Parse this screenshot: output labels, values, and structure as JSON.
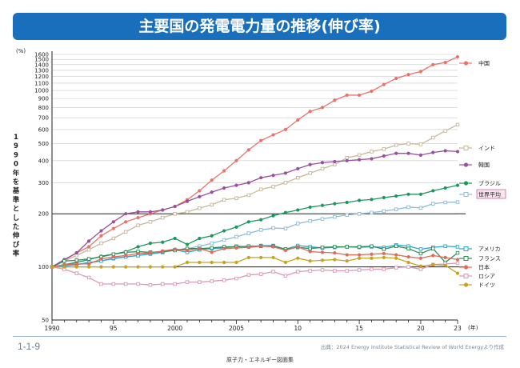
{
  "title": "主要国の発電電力量の推移(伸び率)",
  "figure_number": "1-1-9",
  "source": "出典：2024 Energy Institute Statistical Review of World Energyより作成",
  "publisher": "原子力・エネルギー図面集",
  "colors": {
    "title_bg": "#1a6fbd"
  },
  "chart_data": {
    "type": "line",
    "ylabel": "1990年を基準とした伸び率",
    "yunit": "(%)",
    "xunit": "(年)",
    "yscale": "log",
    "ylim": [
      50,
      1600
    ],
    "xlim": [
      1990,
      2023
    ],
    "y_ticks": [
      50,
      100,
      200,
      300,
      400,
      500,
      600,
      700,
      800,
      900,
      1000,
      1100,
      1200,
      1300,
      1400,
      1500,
      1600
    ],
    "x_ticks": [
      {
        "value": 1990,
        "label": "1990"
      },
      {
        "value": 1995,
        "label": "95"
      },
      {
        "value": 2000,
        "label": "2000"
      },
      {
        "value": 2005,
        "label": "2005"
      },
      {
        "value": 2010,
        "label": "10"
      },
      {
        "value": 2015,
        "label": "15"
      },
      {
        "value": 2020,
        "label": "20"
      },
      {
        "value": 2023,
        "label": "23"
      }
    ],
    "x": [
      1990,
      1991,
      1992,
      1993,
      1994,
      1995,
      1996,
      1997,
      1998,
      1999,
      2000,
      2001,
      2002,
      2003,
      2004,
      2005,
      2006,
      2007,
      2008,
      2009,
      2010,
      2011,
      2012,
      2013,
      2014,
      2015,
      2016,
      2017,
      2018,
      2019,
      2020,
      2021,
      2022,
      2023
    ],
    "series": [
      {
        "name": "中国",
        "color": "#e8736a",
        "marker": "circle",
        "values": [
          100,
          109,
          120,
          130,
          150,
          165,
          180,
          190,
          200,
          210,
          220,
          240,
          270,
          310,
          350,
          400,
          460,
          520,
          560,
          600,
          680,
          760,
          800,
          880,
          940,
          940,
          990,
          1080,
          1170,
          1230,
          1280,
          1400,
          1440,
          1550
        ]
      },
      {
        "name": "インド",
        "color": "#c8b89a",
        "marker": "square",
        "values": [
          100,
          108,
          116,
          125,
          136,
          145,
          158,
          172,
          180,
          190,
          200,
          205,
          215,
          225,
          240,
          245,
          255,
          275,
          285,
          300,
          320,
          340,
          360,
          380,
          415,
          430,
          450,
          465,
          490,
          500,
          495,
          540,
          590,
          640
        ]
      },
      {
        "name": "韓国",
        "color": "#9b4fa0",
        "marker": "circle",
        "values": [
          100,
          110,
          120,
          140,
          160,
          180,
          200,
          205,
          205,
          210,
          220,
          235,
          250,
          265,
          280,
          290,
          300,
          320,
          330,
          340,
          360,
          380,
          390,
          395,
          400,
          405,
          410,
          425,
          440,
          440,
          430,
          445,
          455,
          450
        ]
      },
      {
        "name": "ブラジル",
        "color": "#1a9a5a",
        "marker": "circle",
        "values": [
          100,
          103,
          106,
          110,
          115,
          118,
          122,
          130,
          136,
          138,
          145,
          134,
          145,
          150,
          160,
          168,
          180,
          185,
          195,
          203,
          210,
          218,
          223,
          228,
          232,
          238,
          241,
          247,
          252,
          258,
          258,
          270,
          280,
          290
        ]
      },
      {
        "name": "世界平均",
        "color": "#8bbcd8",
        "marker": "square",
        "values": [
          100,
          102,
          103,
          105,
          108,
          111,
          114,
          116,
          118,
          121,
          125,
          127,
          131,
          136,
          142,
          148,
          155,
          162,
          166,
          165,
          176,
          182,
          187,
          192,
          197,
          200,
          203,
          207,
          212,
          218,
          216,
          228,
          232,
          233
        ]
      },
      {
        "name": "アメリカ",
        "color": "#2aa6c8",
        "marker": "square",
        "values": [
          100,
          101,
          103,
          106,
          108,
          112,
          114,
          116,
          119,
          121,
          125,
          121,
          125,
          127,
          128,
          131,
          130,
          132,
          132,
          126,
          132,
          130,
          128,
          129,
          130,
          129,
          130,
          129,
          133,
          131,
          126,
          129,
          131,
          130
        ]
      },
      {
        "name": "フランス",
        "color": "#2e8b57",
        "marker": "square",
        "values": [
          100,
          108,
          109,
          111,
          114,
          118,
          121,
          122,
          121,
          122,
          124,
          127,
          127,
          128,
          130,
          130,
          131,
          131,
          131,
          126,
          129,
          127,
          129,
          130,
          130,
          130,
          131,
          126,
          131,
          127,
          119,
          127,
          106,
          120
        ]
      },
      {
        "name": "日本",
        "color": "#e06a5a",
        "marker": "circle",
        "values": [
          100,
          103,
          104,
          104,
          111,
          114,
          116,
          119,
          120,
          123,
          126,
          124,
          127,
          121,
          127,
          128,
          129,
          131,
          130,
          124,
          130,
          122,
          121,
          120,
          117,
          117,
          118,
          119,
          117,
          114,
          112,
          116,
          113,
          110
        ]
      },
      {
        "name": "ロシア",
        "color": "#d89ab8",
        "marker": "square",
        "values": [
          100,
          97,
          92,
          87,
          80,
          80,
          80,
          80,
          79,
          80,
          80,
          82,
          82,
          83,
          84,
          86,
          90,
          91,
          94,
          89,
          94,
          95,
          96,
          95,
          95,
          96,
          97,
          97,
          99,
          100,
          97,
          103,
          104,
          105
        ]
      },
      {
        "name": "ドイツ",
        "color": "#c8a21a",
        "marker": "circle",
        "values": [
          100,
          100,
          100,
          100,
          100,
          100,
          100,
          100,
          100,
          100,
          100,
          106,
          106,
          106,
          106,
          106,
          113,
          113,
          113,
          106,
          112,
          108,
          109,
          110,
          108,
          112,
          112,
          113,
          112,
          106,
          101,
          103,
          102,
          92
        ]
      }
    ]
  }
}
